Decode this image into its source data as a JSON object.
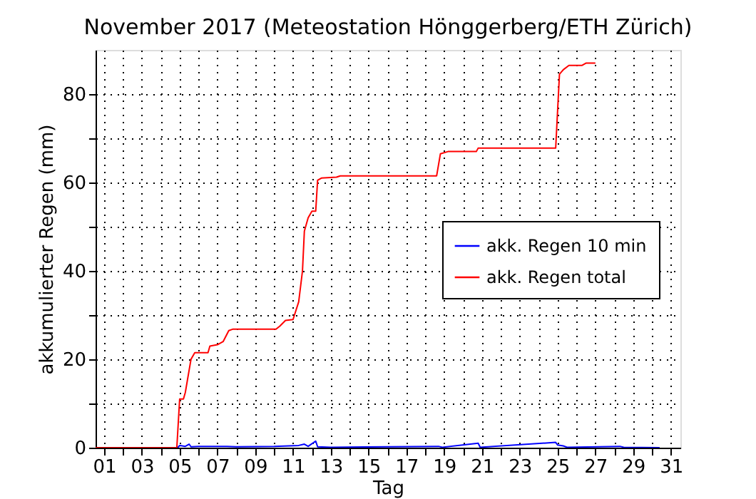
{
  "chart_data": {
    "type": "line",
    "title": "November 2017  (Meteostation Hönggerberg/ETH Zürich)",
    "xlabel": "Tag",
    "ylabel": "akkumulierter Regen (mm)",
    "xlim": [
      0.55,
      31.5
    ],
    "xticks": [
      {
        "value": 1,
        "label": "01"
      },
      {
        "value": 2,
        "label": null
      },
      {
        "value": 3,
        "label": "03"
      },
      {
        "value": 4,
        "label": null
      },
      {
        "value": 5,
        "label": "05"
      },
      {
        "value": 6,
        "label": null
      },
      {
        "value": 7,
        "label": "07"
      },
      {
        "value": 8,
        "label": null
      },
      {
        "value": 9,
        "label": "09"
      },
      {
        "value": 10,
        "label": null
      },
      {
        "value": 11,
        "label": "11"
      },
      {
        "value": 12,
        "label": null
      },
      {
        "value": 13,
        "label": "13"
      },
      {
        "value": 14,
        "label": null
      },
      {
        "value": 15,
        "label": "15"
      },
      {
        "value": 16,
        "label": null
      },
      {
        "value": 17,
        "label": "17"
      },
      {
        "value": 18,
        "label": null
      },
      {
        "value": 19,
        "label": "19"
      },
      {
        "value": 20,
        "label": null
      },
      {
        "value": 21,
        "label": "21"
      },
      {
        "value": 22,
        "label": null
      },
      {
        "value": 23,
        "label": "23"
      },
      {
        "value": 24,
        "label": null
      },
      {
        "value": 25,
        "label": "25"
      },
      {
        "value": 26,
        "label": null
      },
      {
        "value": 27,
        "label": "27"
      },
      {
        "value": 28,
        "label": null
      },
      {
        "value": 29,
        "label": "29"
      },
      {
        "value": 30,
        "label": null
      },
      {
        "value": 31,
        "label": "31"
      }
    ],
    "ylim": [
      0,
      90
    ],
    "yticks": [
      0,
      {
        "value": 10,
        "label": null
      },
      20,
      {
        "value": 30,
        "label": null
      },
      40,
      {
        "value": 50,
        "label": null
      },
      60,
      {
        "value": 70,
        "label": null
      },
      80
    ],
    "grid": true,
    "legend": "right",
    "line_style": "solid",
    "marker": "none",
    "series": [
      {
        "name": "akk. Regen 10 min",
        "color": "#0000ff",
        "x": [
          0.55,
          4.9,
          5.0,
          5.3,
          5.5,
          5.6,
          6.0,
          7.5,
          8.0,
          10.0,
          11.3,
          11.6,
          11.8,
          12.2,
          12.3,
          13.0,
          18.7,
          18.9,
          20.8,
          20.9,
          24.9,
          25.0,
          25.3,
          25.5,
          28.3,
          28.5,
          30.4
        ],
        "values": [
          0,
          0,
          0.5,
          0.3,
          0.8,
          0.2,
          0.3,
          0.3,
          0.2,
          0.3,
          0.5,
          0.8,
          0.3,
          1.5,
          0.2,
          0.1,
          0.3,
          0.1,
          1.0,
          0.1,
          1.2,
          0.6,
          0.4,
          0.1,
          0.3,
          0.1,
          0
        ]
      },
      {
        "name": "akk. Regen total",
        "color": "#ff0000",
        "x": [
          0.55,
          4.85,
          5.0,
          5.2,
          5.3,
          5.4,
          5.6,
          5.8,
          6.5,
          6.6,
          7.0,
          7.3,
          7.6,
          7.8,
          10.1,
          10.3,
          10.6,
          11.0,
          11.3,
          11.5,
          11.6,
          11.8,
          12.0,
          12.2,
          12.3,
          12.5,
          13.3,
          13.5,
          18.6,
          18.8,
          19.2,
          20.7,
          20.8,
          24.9,
          25.1,
          25.3,
          25.6,
          26.3,
          26.5,
          27.0
        ],
        "values": [
          0,
          0,
          11,
          11,
          12.5,
          15,
          20,
          21.5,
          21.5,
          23,
          23.3,
          24,
          26.5,
          26.8,
          26.8,
          27.5,
          28.8,
          29,
          33,
          40,
          49,
          52,
          53.5,
          53.5,
          60.5,
          61,
          61.2,
          61.5,
          61.5,
          66.5,
          67,
          67,
          67.8,
          67.8,
          84.5,
          85.5,
          86.5,
          86.5,
          87,
          87
        ]
      }
    ]
  }
}
